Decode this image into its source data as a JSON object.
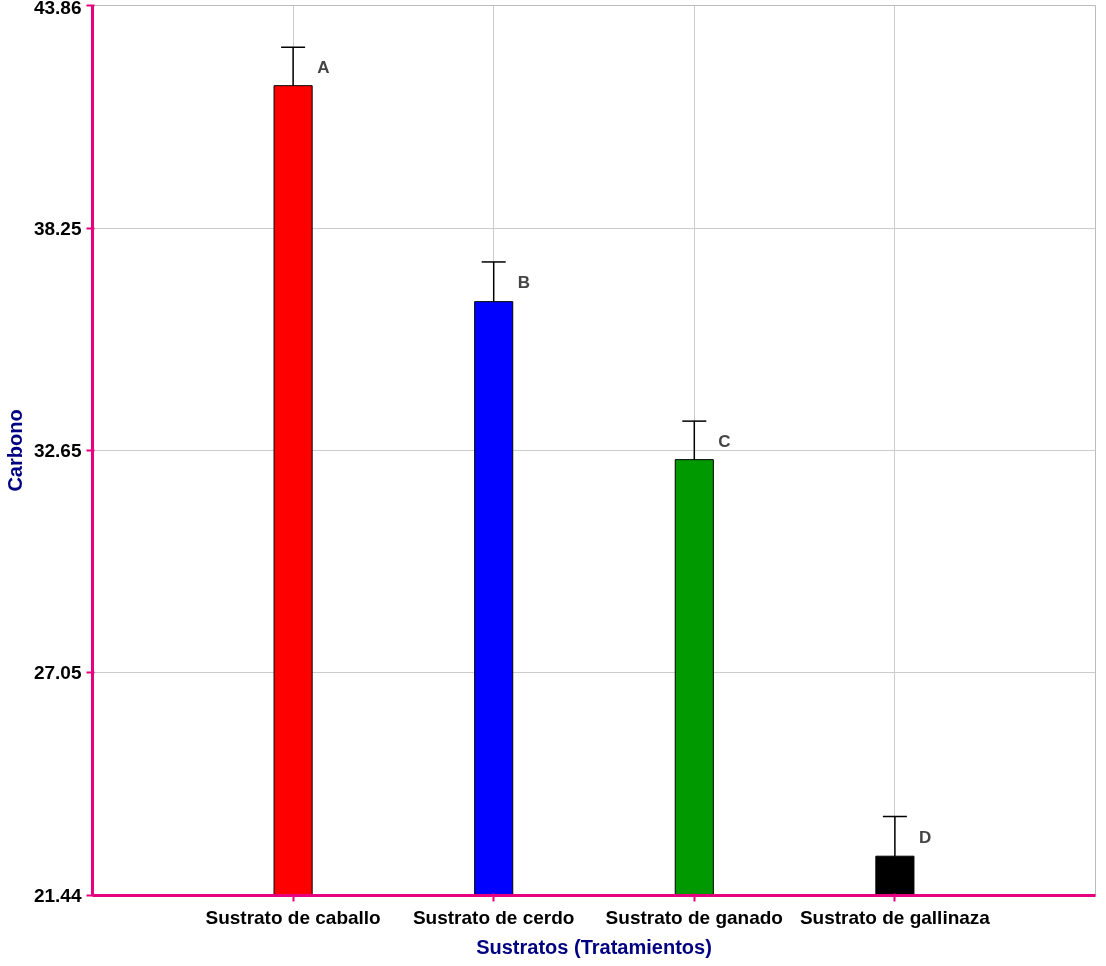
{
  "chart_data": {
    "type": "bar",
    "xlabel": "Sustratos (Tratamientos)",
    "ylabel": "Carbono",
    "categories": [
      "Sustrato de caballo",
      "Sustrato de cerdo",
      "Sustrato de ganado",
      "Sustrato de gallinaza"
    ],
    "values": [
      41.84,
      36.4,
      32.42,
      22.43
    ],
    "errors": [
      0.97,
      1.0,
      0.97,
      1.0
    ],
    "colors": [
      "#ff0000",
      "#0000ff",
      "#009900",
      "#000000"
    ],
    "ylim": [
      21.44,
      43.86
    ],
    "yticks": [
      21.44,
      27.05,
      32.65,
      38.25,
      43.86
    ],
    "grid": true,
    "annotations": [
      {
        "text": "A",
        "x": "Sustrato de caballo",
        "y": 42.81
      },
      {
        "text": "B",
        "x": "Sustrato de cerdo",
        "y": 37.4
      },
      {
        "text": "C",
        "x": "Sustrato de ganado",
        "y": 33.39
      },
      {
        "text": "D",
        "x": "Sustrato de gallinaza",
        "y": 23.43
      }
    ]
  }
}
